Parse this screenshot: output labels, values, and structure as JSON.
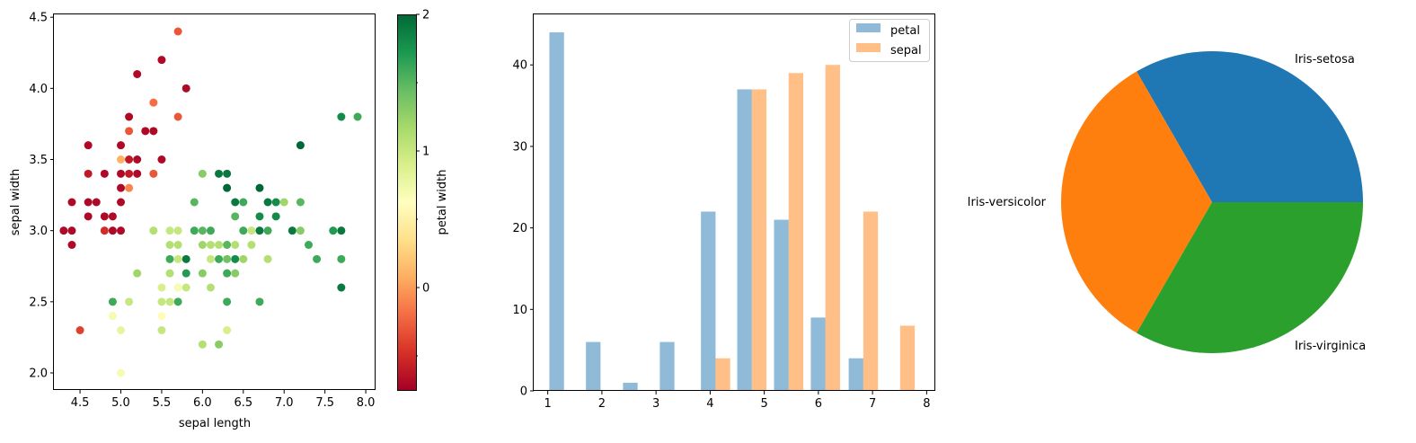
{
  "chart_data": [
    {
      "type": "scatter",
      "xlabel": "sepal length",
      "ylabel": "sepal width",
      "xlim": [
        4.18,
        8.12
      ],
      "ylim": [
        1.88,
        4.52
      ],
      "xticks": [
        4.5,
        5.0,
        5.5,
        6.0,
        6.5,
        7.0,
        7.5,
        8.0
      ],
      "yticks": [
        2.0,
        2.5,
        3.0,
        3.5,
        4.0,
        4.5
      ],
      "colorbar": {
        "label": "petal width",
        "range": [
          -0.75,
          2.0
        ],
        "ticks": [
          0,
          1,
          2
        ],
        "minor_ticks": [
          -0.5,
          0.5,
          1.5
        ],
        "colormap": "RdYlGn",
        "colors": [
          "#a50026",
          "#d73027",
          "#f46d43",
          "#fdae61",
          "#fee08b",
          "#ffffbf",
          "#d9ef8b",
          "#a6d96a",
          "#66bd63",
          "#1a9850",
          "#006837"
        ]
      },
      "points": [
        [
          4.3,
          3.0,
          -0.7
        ],
        [
          4.4,
          3.2,
          -0.7
        ],
        [
          4.4,
          3.0,
          -0.7
        ],
        [
          4.4,
          2.9,
          -0.7
        ],
        [
          4.5,
          2.3,
          -0.4
        ],
        [
          4.6,
          3.6,
          -0.7
        ],
        [
          4.6,
          3.4,
          -0.6
        ],
        [
          4.6,
          3.1,
          -0.7
        ],
        [
          4.6,
          3.2,
          -0.7
        ],
        [
          4.7,
          3.2,
          -0.7
        ],
        [
          4.8,
          3.4,
          -0.7
        ],
        [
          4.8,
          3.1,
          -0.7
        ],
        [
          4.8,
          3.0,
          -0.5
        ],
        [
          4.9,
          3.1,
          -0.7
        ],
        [
          4.9,
          3.0,
          -0.7
        ],
        [
          4.9,
          2.5,
          1.6
        ],
        [
          4.9,
          2.4,
          0.7
        ],
        [
          5.0,
          3.6,
          -0.7
        ],
        [
          5.0,
          3.4,
          -0.7
        ],
        [
          5.0,
          3.3,
          -0.7
        ],
        [
          5.0,
          3.2,
          -0.7
        ],
        [
          5.0,
          3.0,
          -0.7
        ],
        [
          5.0,
          3.5,
          0.1
        ],
        [
          5.0,
          2.3,
          0.8
        ],
        [
          5.0,
          2.0,
          0.7
        ],
        [
          5.1,
          3.8,
          -0.7
        ],
        [
          5.1,
          3.7,
          -0.3
        ],
        [
          5.1,
          3.5,
          -0.6
        ],
        [
          5.1,
          3.4,
          -0.6
        ],
        [
          5.1,
          3.3,
          -0.1
        ],
        [
          5.1,
          2.5,
          1.0
        ],
        [
          5.2,
          4.1,
          -0.7
        ],
        [
          5.2,
          3.5,
          -0.7
        ],
        [
          5.2,
          3.4,
          -0.7
        ],
        [
          5.2,
          2.7,
          1.2
        ],
        [
          5.3,
          3.7,
          -0.7
        ],
        [
          5.4,
          3.9,
          -0.2
        ],
        [
          5.4,
          3.7,
          -0.7
        ],
        [
          5.4,
          3.4,
          -0.3
        ],
        [
          5.4,
          3.0,
          1.1
        ],
        [
          5.5,
          4.2,
          -0.7
        ],
        [
          5.5,
          3.5,
          -0.7
        ],
        [
          5.5,
          2.6,
          0.9
        ],
        [
          5.5,
          2.5,
          1.0
        ],
        [
          5.5,
          2.4,
          0.6
        ],
        [
          5.5,
          2.3,
          1.0
        ],
        [
          5.6,
          3.0,
          1.0
        ],
        [
          5.6,
          2.9,
          1.1
        ],
        [
          5.6,
          2.8,
          1.6
        ],
        [
          5.6,
          2.7,
          1.1
        ],
        [
          5.6,
          2.5,
          1.0
        ],
        [
          5.7,
          4.4,
          -0.3
        ],
        [
          5.7,
          3.8,
          -0.3
        ],
        [
          5.7,
          3.0,
          1.0
        ],
        [
          5.7,
          2.9,
          1.1
        ],
        [
          5.7,
          2.8,
          1.0
        ],
        [
          5.7,
          2.6,
          0.7
        ],
        [
          5.7,
          2.5,
          1.6
        ],
        [
          5.8,
          4.0,
          -0.7
        ],
        [
          5.8,
          2.7,
          1.7
        ],
        [
          5.8,
          2.8,
          1.9
        ],
        [
          5.8,
          2.6,
          1.0
        ],
        [
          5.9,
          3.2,
          1.5
        ],
        [
          5.9,
          3.0,
          1.6
        ],
        [
          6.0,
          3.4,
          1.3
        ],
        [
          6.0,
          3.0,
          1.5
        ],
        [
          6.0,
          2.9,
          1.2
        ],
        [
          6.0,
          2.7,
          1.3
        ],
        [
          6.0,
          2.2,
          1.1
        ],
        [
          6.1,
          3.0,
          1.6
        ],
        [
          6.1,
          2.9,
          1.1
        ],
        [
          6.1,
          2.8,
          1.0
        ],
        [
          6.1,
          2.6,
          1.1
        ],
        [
          6.2,
          3.4,
          1.9
        ],
        [
          6.2,
          2.9,
          1.1
        ],
        [
          6.2,
          2.8,
          1.6
        ],
        [
          6.2,
          2.2,
          1.3
        ],
        [
          6.3,
          3.4,
          1.9
        ],
        [
          6.3,
          3.3,
          2.0
        ],
        [
          6.3,
          2.9,
          1.5
        ],
        [
          6.3,
          2.8,
          1.4
        ],
        [
          6.3,
          2.7,
          1.6
        ],
        [
          6.3,
          2.5,
          1.6
        ],
        [
          6.3,
          2.3,
          0.9
        ],
        [
          6.4,
          3.2,
          1.9
        ],
        [
          6.4,
          3.1,
          1.5
        ],
        [
          6.4,
          2.9,
          1.1
        ],
        [
          6.4,
          2.8,
          1.8
        ],
        [
          6.4,
          2.7,
          1.3
        ],
        [
          6.5,
          3.2,
          1.6
        ],
        [
          6.5,
          3.0,
          1.6
        ],
        [
          6.5,
          2.8,
          1.2
        ],
        [
          6.6,
          3.0,
          1.0
        ],
        [
          6.6,
          2.9,
          1.1
        ],
        [
          6.7,
          3.3,
          2.0
        ],
        [
          6.7,
          3.1,
          1.8
        ],
        [
          6.7,
          3.0,
          1.9
        ],
        [
          6.7,
          2.5,
          1.6
        ],
        [
          6.8,
          3.2,
          1.9
        ],
        [
          6.8,
          3.0,
          1.6
        ],
        [
          6.8,
          2.8,
          1.1
        ],
        [
          6.9,
          3.2,
          1.8
        ],
        [
          6.9,
          3.1,
          1.8
        ],
        [
          7.0,
          3.2,
          1.2
        ],
        [
          7.1,
          3.0,
          1.9
        ],
        [
          7.2,
          3.6,
          2.0
        ],
        [
          7.2,
          3.2,
          1.5
        ],
        [
          7.2,
          3.0,
          1.3
        ],
        [
          7.3,
          2.9,
          1.6
        ],
        [
          7.4,
          2.8,
          1.6
        ],
        [
          7.6,
          3.0,
          1.7
        ],
        [
          7.7,
          3.8,
          1.8
        ],
        [
          7.7,
          3.0,
          1.9
        ],
        [
          7.7,
          2.8,
          1.6
        ],
        [
          7.7,
          2.6,
          1.9
        ],
        [
          7.9,
          3.8,
          1.6
        ]
      ]
    },
    {
      "type": "bar",
      "legend_position": "top-right",
      "xlim": [
        0.74,
        8.16
      ],
      "ylim": [
        0,
        46.2
      ],
      "xticks": [
        1,
        2,
        3,
        4,
        5,
        6,
        7,
        8
      ],
      "yticks": [
        0,
        10,
        20,
        30,
        40
      ],
      "bar_width": 0.27,
      "series": [
        {
          "name": "petal",
          "color": "#1f77b4",
          "x": [
            1.165,
            1.84,
            2.525,
            3.205,
            3.965,
            4.635,
            5.315,
            5.995,
            6.695
          ],
          "values": [
            44,
            6,
            1,
            6,
            22,
            37,
            21,
            9,
            4
          ]
        },
        {
          "name": "sepal",
          "color": "#ff7f0e",
          "x": [
            4.235,
            4.905,
            5.585,
            6.265,
            6.965,
            7.645
          ],
          "values": [
            4,
            37,
            39,
            40,
            22,
            8
          ]
        }
      ]
    },
    {
      "type": "pie",
      "labels": [
        "Iris-setosa",
        "Iris-versicolor",
        "Iris-virginica"
      ],
      "values": [
        50,
        50,
        50
      ],
      "colors": [
        "#1f77b4",
        "#ff7f0e",
        "#2ca02c"
      ]
    }
  ]
}
